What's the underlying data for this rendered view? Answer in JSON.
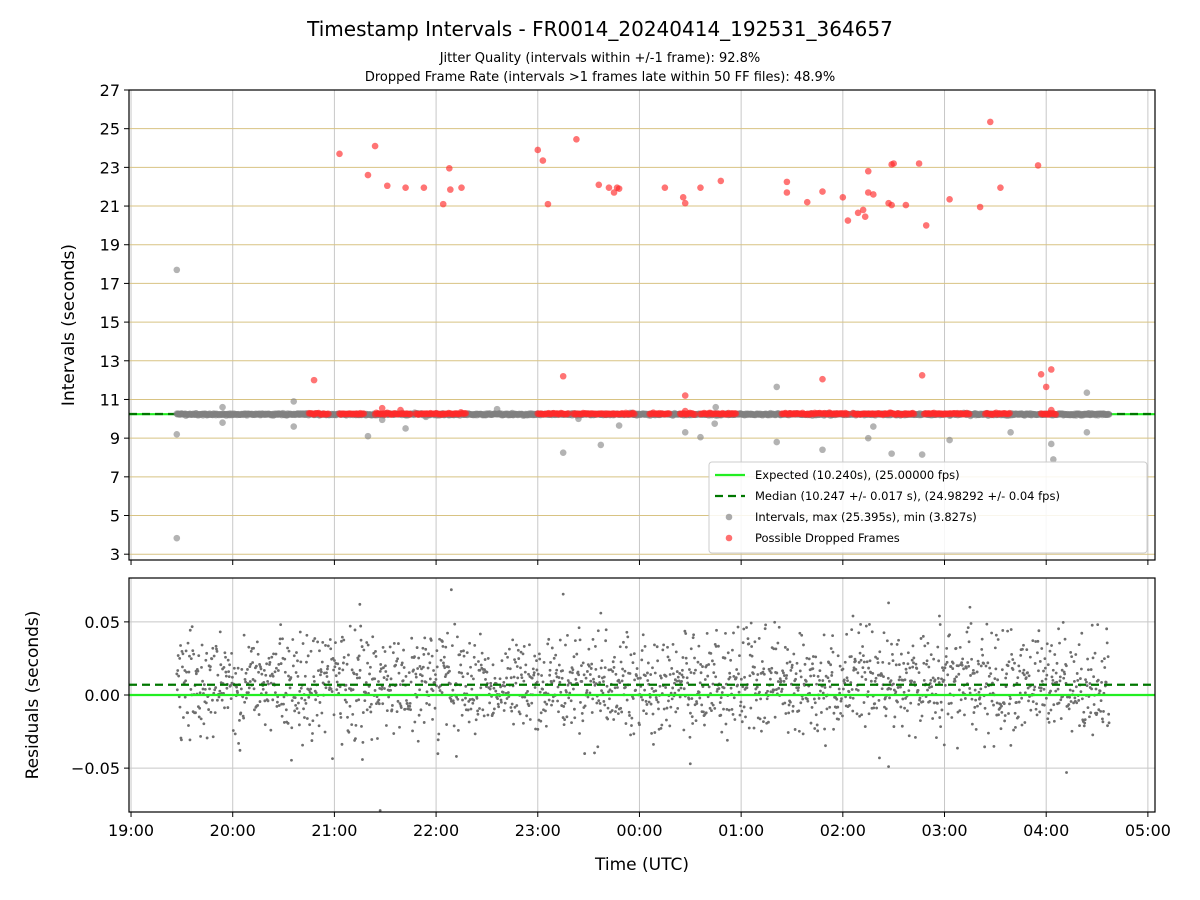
{
  "chart_data": [
    {
      "type": "scatter",
      "panel": "intervals",
      "title": "Timestamp Intervals - FR0014_20240414_192531_364657",
      "subtitle_1": "Jitter Quality (intervals within +/-1 frame): 92.8%",
      "subtitle_2": "Dropped Frame Rate (intervals >1 frames late within 50 FF files): 48.9%",
      "ylabel": "Intervals (seconds)",
      "ylim": [
        2.7,
        27.0
      ],
      "yticks": [
        "3",
        "5",
        "7",
        "9",
        "11",
        "13",
        "15",
        "17",
        "19",
        "21",
        "23",
        "25",
        "27"
      ],
      "horizontal_gridlines": "goldenrod",
      "x_unit": "hours since 19:00 UTC",
      "xlim": [
        -0.02,
        10.07
      ],
      "expected_interval": 10.24,
      "median_interval": 10.247,
      "legend_position": "lower-right",
      "legend": [
        {
          "label": "Expected (10.240s), (25.00000 fps)",
          "style": "solid",
          "color": "#22ee22"
        },
        {
          "label": "Median (10.247 +/- 0.017 s), (24.98292 +/- 0.04 fps)",
          "style": "dashed",
          "color": "#007700"
        },
        {
          "label": "Intervals, max (25.395s), min (3.827s)",
          "style": "marker",
          "color": "#888888"
        },
        {
          "label": "Possible Dropped Frames",
          "style": "marker",
          "color": "#ff3333"
        }
      ],
      "series": [
        {
          "name": "Intervals, max (25.395s), min (3.827s)",
          "color": "#888888",
          "band_range": [
            0.45,
            9.62
          ],
          "band_value": 10.23,
          "points": [
            [
              0.45,
              17.7
            ],
            [
              0.45,
              9.2
            ],
            [
              0.45,
              3.83
            ],
            [
              0.9,
              10.6
            ],
            [
              0.9,
              9.8
            ],
            [
              1.6,
              10.9
            ],
            [
              1.6,
              9.6
            ],
            [
              2.33,
              9.1
            ],
            [
              2.47,
              9.95
            ],
            [
              2.7,
              9.5
            ],
            [
              2.9,
              10.1
            ],
            [
              3.6,
              10.5
            ],
            [
              3.75,
              10.3
            ],
            [
              4.25,
              8.25
            ],
            [
              4.4,
              10.0
            ],
            [
              4.62,
              8.65
            ],
            [
              4.8,
              9.65
            ],
            [
              5.45,
              9.3
            ],
            [
              5.6,
              9.05
            ],
            [
              5.74,
              9.75
            ],
            [
              5.75,
              10.6
            ],
            [
              6.35,
              11.65
            ],
            [
              6.35,
              8.8
            ],
            [
              6.8,
              8.4
            ],
            [
              7.25,
              9.0
            ],
            [
              7.3,
              9.6
            ],
            [
              7.48,
              8.2
            ],
            [
              7.78,
              8.15
            ],
            [
              8.05,
              8.9
            ],
            [
              8.65,
              9.3
            ],
            [
              9.05,
              8.7
            ],
            [
              9.07,
              7.9
            ],
            [
              9.4,
              11.35
            ],
            [
              9.4,
              9.3
            ]
          ]
        },
        {
          "name": "Possible Dropped Frames",
          "color": "#ff3333",
          "band_segments": [
            [
              1.75,
              1.95
            ],
            [
              2.05,
              2.3
            ],
            [
              2.4,
              2.75
            ],
            [
              2.8,
              3.3
            ],
            [
              4.0,
              4.3
            ],
            [
              4.35,
              4.95
            ],
            [
              5.1,
              5.3
            ],
            [
              5.4,
              5.55
            ],
            [
              5.6,
              5.95
            ],
            [
              6.4,
              7.05
            ],
            [
              7.1,
              7.7
            ],
            [
              7.8,
              8.25
            ],
            [
              8.4,
              8.65
            ],
            [
              8.95,
              9.1
            ]
          ],
          "points": [
            [
              1.8,
              12.0
            ],
            [
              2.05,
              23.7
            ],
            [
              2.33,
              22.6
            ],
            [
              2.4,
              24.1
            ],
            [
              2.47,
              10.55
            ],
            [
              2.52,
              22.05
            ],
            [
              2.65,
              10.45
            ],
            [
              2.7,
              21.95
            ],
            [
              2.88,
              21.95
            ],
            [
              3.07,
              21.1
            ],
            [
              3.13,
              22.95
            ],
            [
              3.14,
              21.85
            ],
            [
              3.25,
              21.95
            ],
            [
              4.0,
              23.9
            ],
            [
              4.05,
              23.35
            ],
            [
              4.1,
              21.1
            ],
            [
              4.25,
              12.2
            ],
            [
              4.38,
              24.45
            ],
            [
              4.6,
              22.1
            ],
            [
              4.7,
              21.95
            ],
            [
              4.75,
              21.7
            ],
            [
              4.78,
              21.95
            ],
            [
              4.8,
              21.9
            ],
            [
              5.25,
              21.95
            ],
            [
              5.43,
              21.45
            ],
            [
              5.45,
              21.15
            ],
            [
              5.45,
              11.2
            ],
            [
              5.45,
              10.4
            ],
            [
              5.6,
              21.95
            ],
            [
              5.8,
              22.3
            ],
            [
              6.45,
              22.25
            ],
            [
              6.45,
              21.7
            ],
            [
              6.65,
              21.2
            ],
            [
              6.8,
              21.75
            ],
            [
              6.8,
              12.05
            ],
            [
              7.0,
              21.45
            ],
            [
              7.05,
              20.25
            ],
            [
              7.15,
              20.65
            ],
            [
              7.2,
              20.8
            ],
            [
              7.22,
              20.45
            ],
            [
              7.25,
              22.8
            ],
            [
              7.25,
              21.7
            ],
            [
              7.3,
              21.6
            ],
            [
              7.45,
              21.15
            ],
            [
              7.48,
              21.05
            ],
            [
              7.48,
              23.15
            ],
            [
              7.5,
              23.2
            ],
            [
              7.62,
              21.05
            ],
            [
              7.75,
              23.2
            ],
            [
              7.78,
              12.25
            ],
            [
              7.82,
              20.0
            ],
            [
              8.05,
              21.35
            ],
            [
              8.35,
              20.95
            ],
            [
              8.45,
              25.35
            ],
            [
              8.55,
              21.95
            ],
            [
              8.92,
              23.1
            ],
            [
              8.95,
              12.3
            ],
            [
              9.0,
              11.65
            ],
            [
              9.05,
              12.55
            ],
            [
              9.05,
              10.45
            ]
          ]
        }
      ]
    },
    {
      "type": "scatter",
      "panel": "residuals",
      "ylabel": "Residuals (seconds)",
      "xlabel": "Time (UTC)",
      "ylim": [
        -0.08,
        0.08
      ],
      "yticks": [
        "0.05",
        "0.00",
        "−0.05"
      ],
      "ytick_values": [
        0.05,
        0.0,
        -0.05
      ],
      "xticks": [
        "19:00",
        "20:00",
        "21:00",
        "22:00",
        "23:00",
        "00:00",
        "01:00",
        "02:00",
        "03:00",
        "04:00",
        "05:00"
      ],
      "xtick_values": [
        0,
        1,
        2,
        3,
        4,
        5,
        6,
        7,
        8,
        9,
        10
      ],
      "expected_residual": 0.0,
      "median_residual": 0.007,
      "residual_spread_sd": 0.017,
      "x_range": [
        0.45,
        9.62
      ],
      "outliers": [
        [
          2.25,
          0.062
        ],
        [
          2.45,
          -0.079
        ],
        [
          3.15,
          0.072
        ],
        [
          3.2,
          -0.042
        ],
        [
          4.25,
          0.069
        ],
        [
          4.62,
          0.056
        ],
        [
          5.5,
          -0.047
        ],
        [
          7.1,
          0.054
        ],
        [
          7.45,
          0.063
        ],
        [
          7.45,
          -0.049
        ],
        [
          7.95,
          0.054
        ],
        [
          8.25,
          0.06
        ],
        [
          9.2,
          -0.053
        ]
      ]
    }
  ]
}
